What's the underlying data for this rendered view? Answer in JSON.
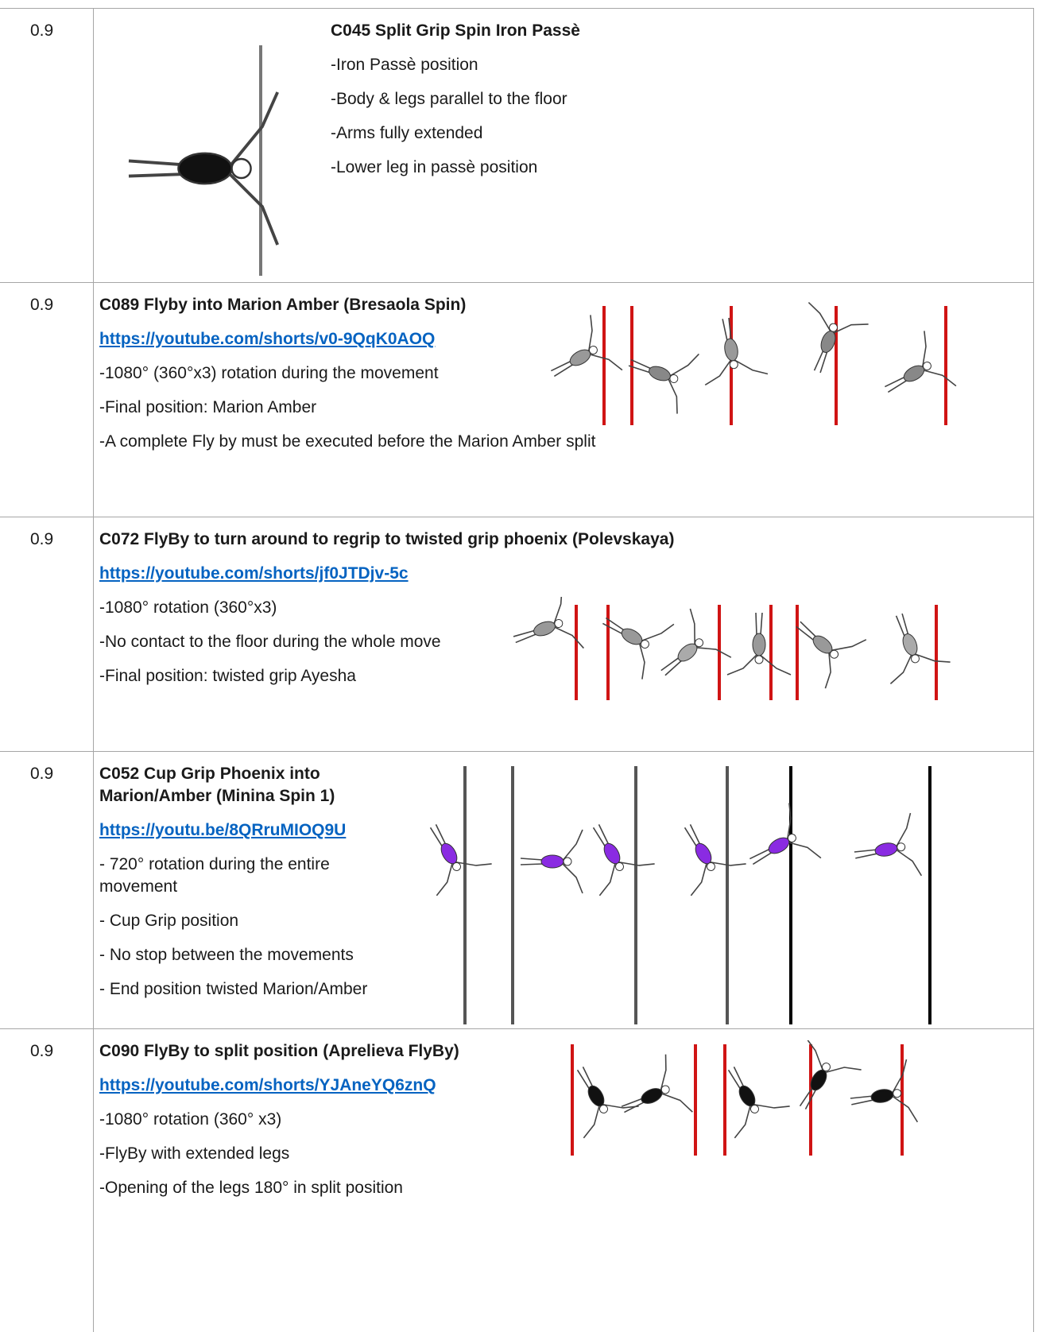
{
  "rows": [
    {
      "score": "0.9",
      "title": "C045 Split Grip Spin Iron Passè",
      "bullets": [
        "-Iron Passè position",
        "-Body & legs parallel to the floor",
        "-Arms fully extended",
        "-Lower leg in passè position"
      ]
    },
    {
      "score": "0.9",
      "title": "C089 Flyby into Marion Amber (Bresaola Spin)",
      "link": "https://youtube.com/shorts/v0-9QqK0AOQ",
      "bullets": [
        "-1080° (360°x3) rotation during the movement",
        "-Final position: Marion Amber",
        "-A complete Fly by must be executed before the Marion Amber split"
      ]
    },
    {
      "score": "0.9",
      "title": "C072 FlyBy to turn around to regrip to twisted grip phoenix (Polevskaya)",
      "link": "https://youtube.com/shorts/jf0JTDjv-5c",
      "bullets": [
        "-1080° rotation (360°x3)",
        "-No contact to the floor during the whole move",
        "-Final position: twisted grip Ayesha"
      ]
    },
    {
      "score": "0.9",
      "title": "C052 Cup Grip Phoenix into Marion/Amber (Minina Spin 1)",
      "link": "https://youtu.be/8QRruMIOQ9U",
      "bullets": [
        "- 720° rotation during the entire movement",
        "- Cup Grip position",
        "- No stop between the movements",
        "- End position twisted Marion/Amber"
      ]
    },
    {
      "score": "0.9",
      "title": "C090 FlyBy to split position (Aprelieva FlyBy)",
      "link": "https://youtube.com/shorts/YJAneYQ6znQ",
      "bullets": [
        "-1080° rotation (360° x3)",
        "-FlyBy with extended legs",
        "-Opening of the legs 180° in split position"
      ]
    }
  ]
}
